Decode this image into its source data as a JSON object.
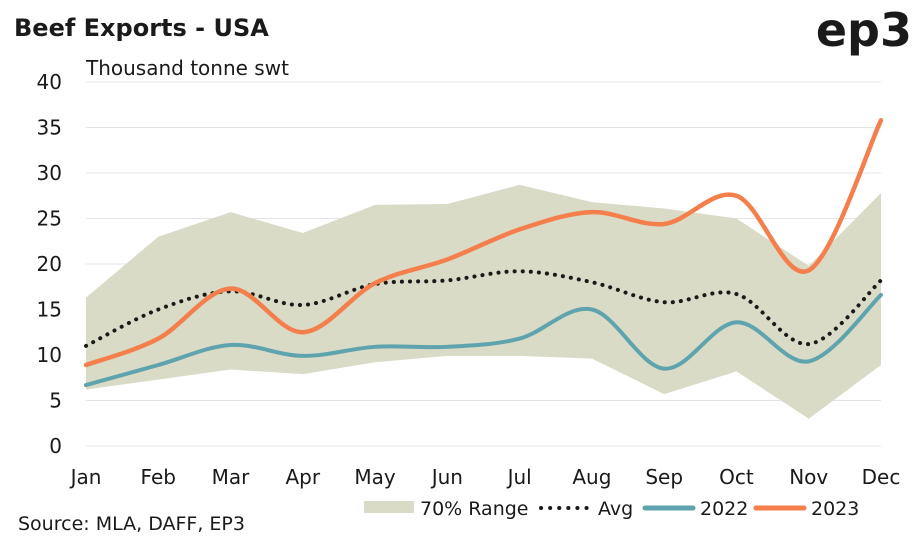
{
  "logo_text": "ep3",
  "chart_data": {
    "type": "line",
    "title": "Beef Exports - USA",
    "ylabel": "Thousand tonne swt",
    "xlabel": "",
    "source": "Source: MLA, DAFF, EP3",
    "categories": [
      "Jan",
      "Feb",
      "Mar",
      "Apr",
      "May",
      "Jun",
      "Jul",
      "Aug",
      "Sep",
      "Oct",
      "Nov",
      "Dec"
    ],
    "ylim": [
      0,
      40
    ],
    "yticks": [
      "0",
      "5",
      "10",
      "15",
      "20",
      "25",
      "30",
      "35",
      "40"
    ],
    "grid": true,
    "legend_position": "bottom-right",
    "range": {
      "name": "70% Range",
      "color": "#d9dbc6",
      "upper": [
        16.3,
        23.0,
        25.7,
        23.4,
        26.5,
        26.6,
        28.7,
        26.8,
        26.1,
        25.0,
        19.8,
        27.8
      ],
      "lower": [
        6.2,
        7.3,
        8.4,
        7.9,
        9.2,
        9.9,
        9.9,
        9.6,
        5.7,
        8.2,
        3.0,
        8.9
      ]
    },
    "series": [
      {
        "name": "Avg",
        "color": "#1a1a1a",
        "style": "dotted",
        "values": [
          11.0,
          15.0,
          17.0,
          15.5,
          17.8,
          18.2,
          19.2,
          18.0,
          15.8,
          16.7,
          11.2,
          18.2
        ]
      },
      {
        "name": "2022",
        "color": "#5fa3ae",
        "style": "solid",
        "values": [
          6.7,
          8.9,
          11.1,
          9.9,
          10.9,
          10.9,
          11.8,
          15.0,
          8.5,
          13.6,
          9.3,
          16.6
        ]
      },
      {
        "name": "2023",
        "color": "#f47f4c",
        "style": "solid",
        "values": [
          8.9,
          11.8,
          17.3,
          12.5,
          17.9,
          20.5,
          23.8,
          25.7,
          24.4,
          27.5,
          19.3,
          35.8
        ]
      }
    ]
  }
}
